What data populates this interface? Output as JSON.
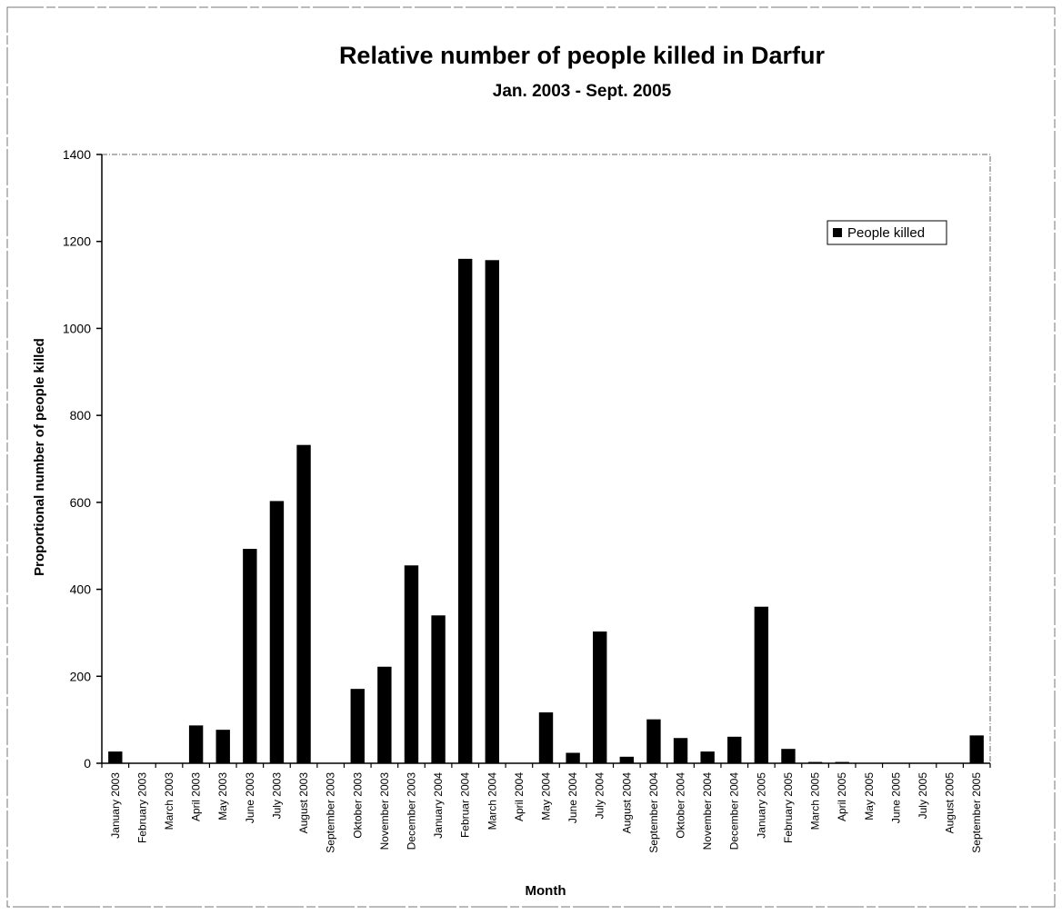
{
  "chart_data": {
    "type": "bar",
    "title": "Relative number of people killed in Darfur",
    "subtitle": "Jan. 2003 - Sept. 2005",
    "xlabel": "Month",
    "ylabel": "Proportional number of people killed",
    "ylim": [
      0,
      1400
    ],
    "yticks": [
      "0",
      "200",
      "400",
      "600",
      "800",
      "1000",
      "1200",
      "1400"
    ],
    "grid": false,
    "legend_position": "top-right",
    "bar_color": "#000000",
    "categories": [
      "January 2003",
      "February 2003",
      "March 2003",
      "April 2003",
      "May 2003",
      "June 2003",
      "July 2003",
      "August 2003",
      "September 2003",
      "Oktober 2003",
      "November 2003",
      "December 2003",
      "January 2004",
      "Februar 2004",
      "March 2004",
      "April 2004",
      "May 2004",
      "June 2004",
      "July 2004",
      "August 2004",
      "September 2004",
      "Oktober 2004",
      "November 2004",
      "December 2004",
      "January 2005",
      "February 2005",
      "March 2005",
      "April 2005",
      "May 2005",
      "June 2005",
      "July 2005",
      "August 2005",
      "September 2005"
    ],
    "series": [
      {
        "name": "People killed",
        "values": [
          27,
          0,
          0,
          87,
          77,
          493,
          603,
          732,
          0,
          171,
          222,
          455,
          340,
          1160,
          1157,
          0,
          117,
          24,
          303,
          15,
          101,
          58,
          27,
          61,
          360,
          33,
          3,
          3,
          0,
          0,
          0,
          0,
          64
        ]
      }
    ]
  }
}
